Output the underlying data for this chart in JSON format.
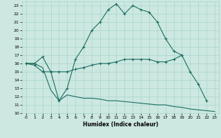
{
  "xlabel": "Humidex (Indice chaleur)",
  "bg_color": "#cce8e0",
  "grid_color": "#a8d4cc",
  "line_color": "#1a6b60",
  "xlim": [
    -0.5,
    23.5
  ],
  "ylim": [
    10,
    23.5
  ],
  "xticks": [
    0,
    1,
    2,
    3,
    4,
    5,
    6,
    7,
    8,
    9,
    10,
    11,
    12,
    13,
    14,
    15,
    16,
    17,
    18,
    19,
    20,
    21,
    22,
    23
  ],
  "yticks": [
    10,
    11,
    12,
    13,
    14,
    15,
    16,
    17,
    18,
    19,
    20,
    21,
    22,
    23
  ],
  "series1_x": [
    0,
    1,
    2,
    3,
    4,
    5,
    6,
    7,
    8,
    9,
    10,
    11,
    12,
    13,
    14,
    15,
    16,
    17,
    18,
    19
  ],
  "series1_y": [
    16.0,
    16.0,
    16.8,
    15.0,
    11.5,
    13.0,
    16.5,
    18.0,
    20.0,
    21.0,
    22.5,
    23.2,
    22.0,
    23.0,
    22.5,
    22.2,
    21.0,
    19.0,
    17.5,
    17.0
  ],
  "series2_x": [
    0,
    1,
    2,
    3,
    4,
    5,
    6,
    7,
    8,
    9,
    10,
    11,
    12,
    13,
    14,
    15,
    16,
    17,
    18,
    19,
    20,
    21,
    22
  ],
  "series2_y": [
    16.0,
    15.8,
    15.0,
    15.0,
    15.0,
    15.0,
    15.3,
    15.5,
    15.8,
    16.0,
    16.0,
    16.2,
    16.5,
    16.5,
    16.5,
    16.5,
    16.2,
    16.2,
    16.5,
    17.0,
    15.0,
    13.5,
    11.5
  ],
  "series3_x": [
    0,
    1,
    2,
    3,
    4,
    5,
    6,
    7,
    8,
    9,
    10,
    11,
    12,
    13,
    14,
    15,
    16,
    17,
    18,
    19,
    20,
    21,
    22,
    23
  ],
  "series3_y": [
    16.0,
    16.0,
    15.5,
    12.8,
    11.5,
    12.2,
    12.0,
    11.8,
    11.8,
    11.7,
    11.5,
    11.5,
    11.4,
    11.3,
    11.2,
    11.1,
    11.0,
    11.0,
    10.8,
    10.7,
    10.5,
    10.4,
    10.3,
    10.2
  ]
}
